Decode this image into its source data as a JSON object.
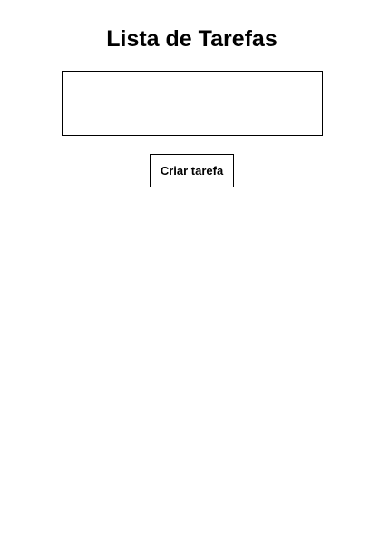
{
  "page": {
    "title": "Lista de Tarefas"
  },
  "task_input": {
    "value": "",
    "placeholder": ""
  },
  "create_button": {
    "label": "Criar tarefa"
  },
  "tasks": []
}
